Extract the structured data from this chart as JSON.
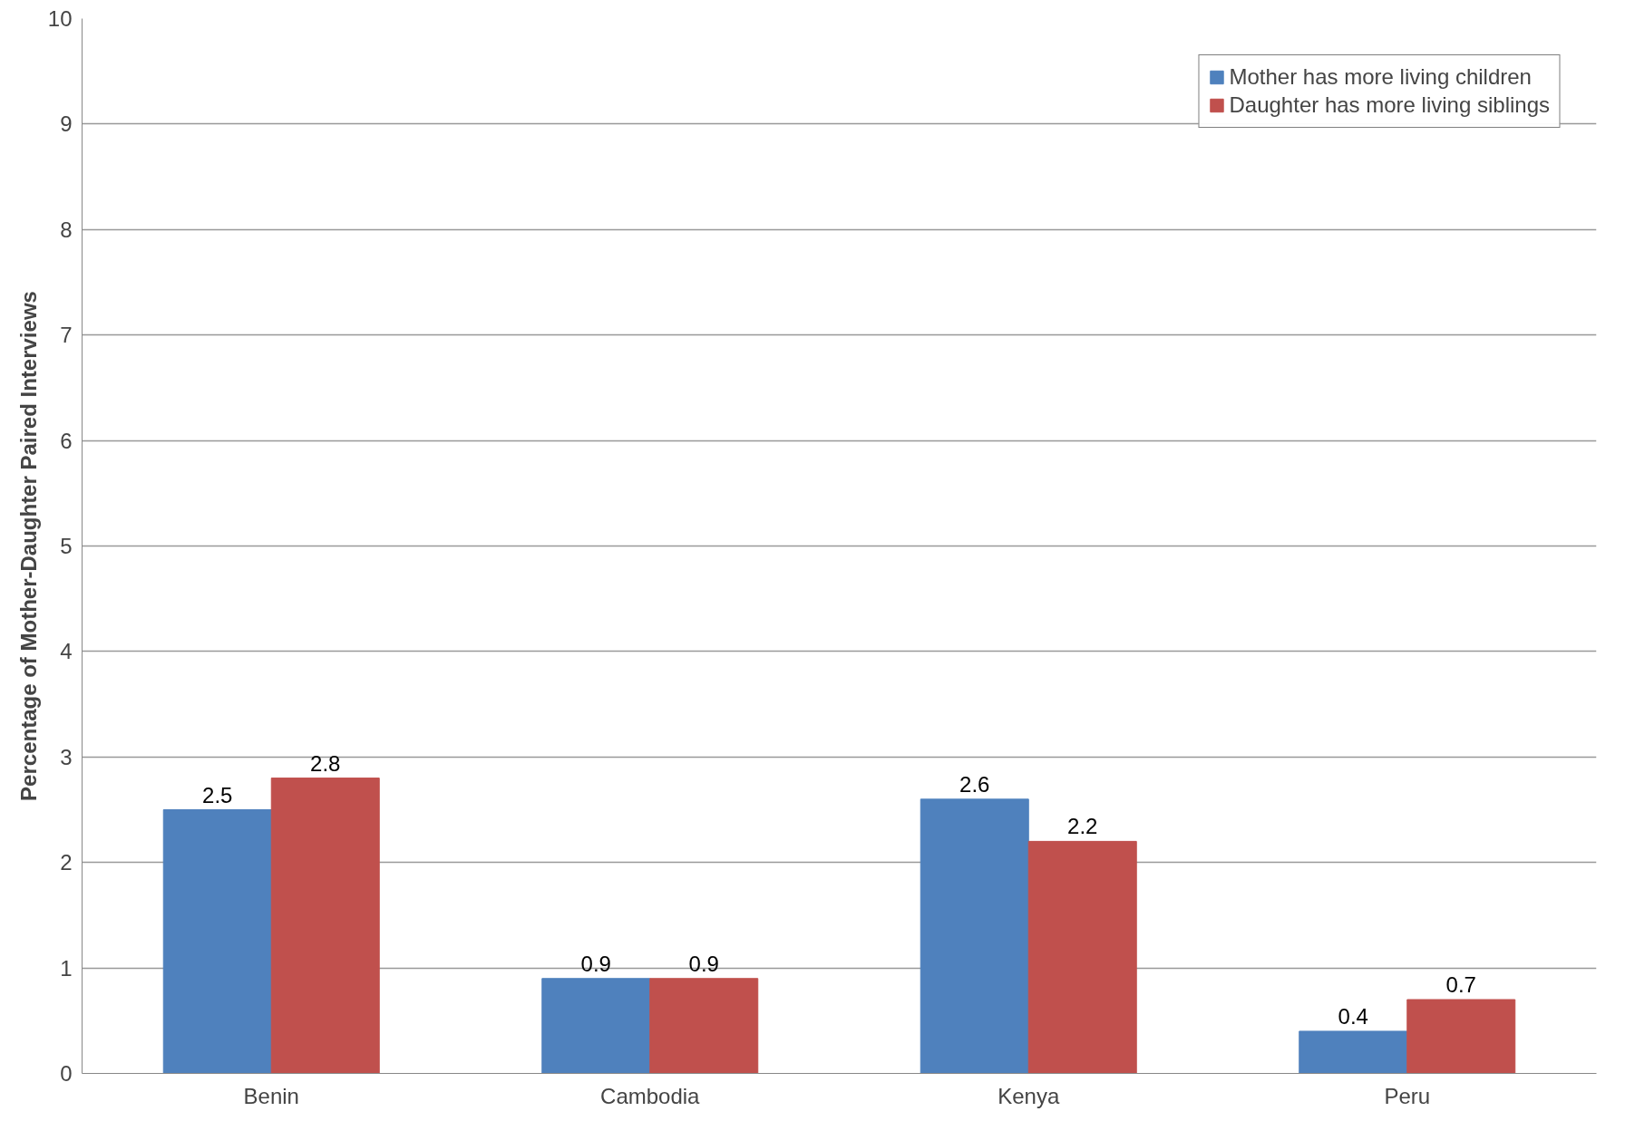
{
  "chart_data": {
    "type": "bar",
    "ylabel": "Percentage of Mother-Daughter Paired Interviews",
    "categories": [
      "Benin",
      "Cambodia",
      "Kenya",
      "Peru"
    ],
    "series": [
      {
        "name": "Mother has more living children",
        "color": "#4f81bd",
        "values": [
          2.5,
          0.9,
          2.6,
          0.4
        ]
      },
      {
        "name": "Daughter has more living siblings",
        "color": "#c0504d",
        "values": [
          2.8,
          0.9,
          2.2,
          0.7
        ]
      }
    ],
    "ylim": [
      0,
      10
    ],
    "yticks": [
      0,
      1,
      2,
      3,
      4,
      5,
      6,
      7,
      8,
      9,
      10
    ],
    "grid": "y",
    "legend": "top right",
    "data_labels": true
  }
}
